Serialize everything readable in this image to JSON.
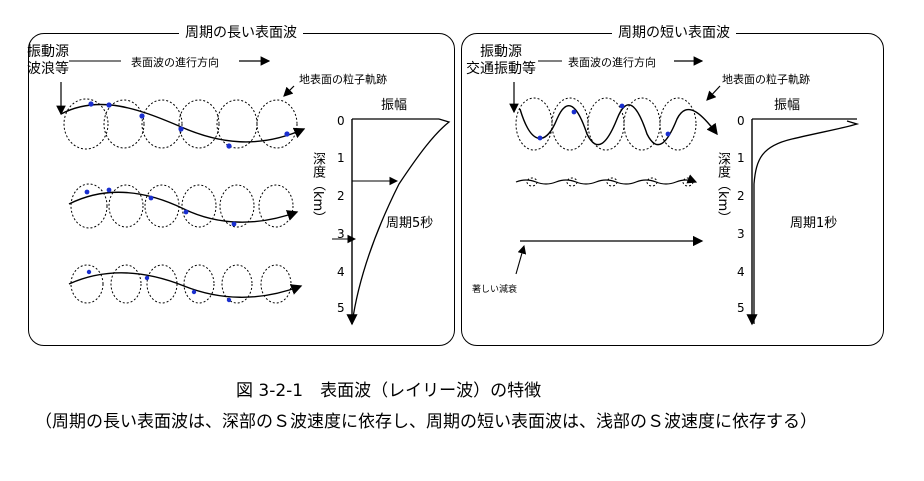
{
  "left": {
    "title": "周期の長い表面波",
    "source_line1": "振動源",
    "source_line2": "波浪等",
    "direction": "表面波の進行方向",
    "trajectory": "地表面の粒子軌跡",
    "amplitude": "振幅",
    "depth_label": "深度（km）",
    "period": "周期5秒",
    "ticks": [
      "0",
      "1",
      "2",
      "3",
      "4",
      "5"
    ]
  },
  "right": {
    "title": "周期の短い表面波",
    "source_line1": "振動源",
    "source_line2": "交通振動等",
    "direction": "表面波の進行方向",
    "trajectory": "地表面の粒子軌跡",
    "amplitude": "振幅",
    "depth_label": "深度（km）",
    "period": "周期1秒",
    "attenuation": "著しい減衰",
    "ticks": [
      "0",
      "1",
      "2",
      "3",
      "4",
      "5"
    ]
  },
  "caption": "図 3-2-1　表面波（レイリー波）の特徴",
  "note": "（周期の長い表面波は、深部のＳ波速度に依存し、周期の短い表面波は、浅部のＳ波速度に依存する）"
}
